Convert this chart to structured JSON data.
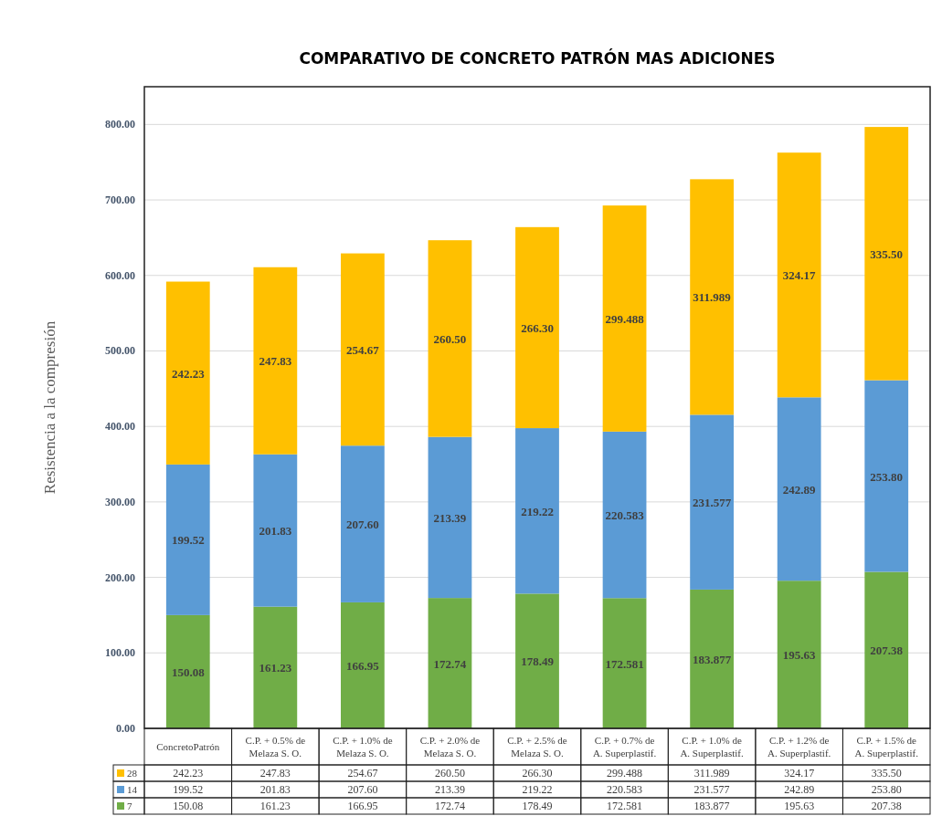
{
  "chart_data": {
    "type": "bar",
    "title": "COMPARATIVO DE CONCRETO PATRÓN MAS ADICIONES",
    "ylabel": "Resistencia a la compresión",
    "stacked": true,
    "legend": "bottom",
    "data_labels": true,
    "grid": "y",
    "categories": [
      "ConcretoPatrón",
      "C.P. + 0.5% de Melaza S. O.",
      "C.P. + 1.0% de Melaza S. O.",
      "C.P. + 2.0% de Melaza S. O.",
      "C.P. + 2.5% de Melaza S. O.",
      "C.P. + 0.7% de A. Superplastif.",
      "C.P. + 1.0% de A. Superplastif.",
      "C.P. + 1.2% de A. Superplastif.",
      "C.P. + 1.5% de A. Superplastif."
    ],
    "ylim": [
      0,
      850
    ],
    "yticks": [
      {
        "value": 0,
        "label": "0.00"
      },
      {
        "value": 100,
        "label": "100.00"
      },
      {
        "value": 200,
        "label": "200.00"
      },
      {
        "value": 300,
        "label": "300.00"
      },
      {
        "value": 400,
        "label": "400.00"
      },
      {
        "value": 500,
        "label": "500.00"
      },
      {
        "value": 600,
        "label": "600.00"
      },
      {
        "value": 700,
        "label": "700.00"
      },
      {
        "value": 800,
        "label": "800.00"
      }
    ],
    "series": [
      {
        "name": "7",
        "color": "#70ad47",
        "values": [
          150.08,
          161.23,
          166.95,
          172.74,
          178.49,
          172.581,
          183.877,
          195.63,
          207.38
        ],
        "value_labels": [
          "150.08",
          "161.23",
          "166.95",
          "172.74",
          "178.49",
          "172.581",
          "183.877",
          "195.63",
          "207.38"
        ]
      },
      {
        "name": "14",
        "color": "#5b9bd5",
        "values": [
          199.52,
          201.83,
          207.6,
          213.39,
          219.22,
          220.583,
          231.577,
          242.89,
          253.8
        ],
        "value_labels": [
          "199.52",
          "201.83",
          "207.60",
          "213.39",
          "219.22",
          "220.583",
          "231.577",
          "242.89",
          "253.80"
        ]
      },
      {
        "name": "28",
        "color": "#ffc000",
        "values": [
          242.23,
          247.83,
          254.67,
          260.5,
          266.3,
          299.488,
          311.989,
          324.17,
          335.5
        ],
        "value_labels": [
          "242.23",
          "247.83",
          "254.67",
          "260.50",
          "266.30",
          "299.488",
          "311.989",
          "324.17",
          "335.50"
        ]
      }
    ]
  }
}
